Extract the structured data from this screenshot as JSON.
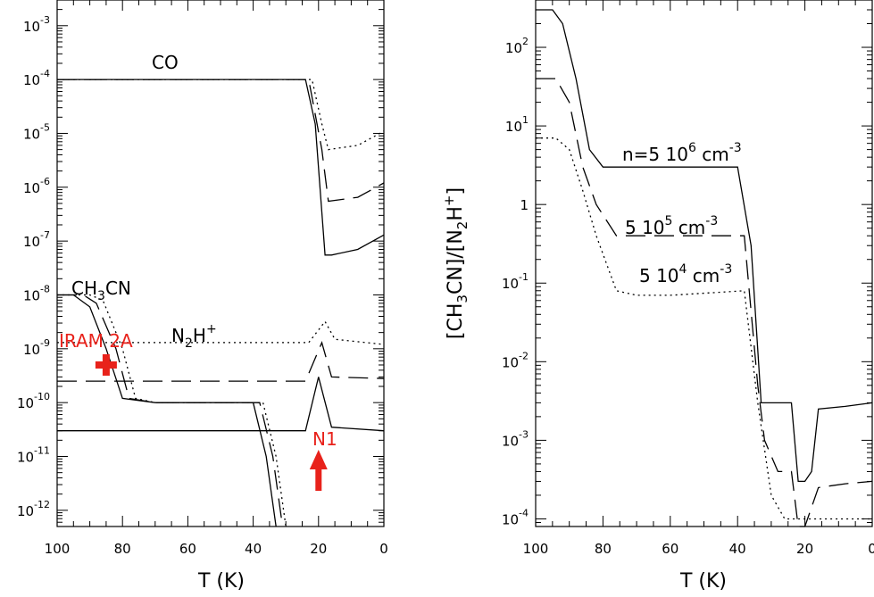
{
  "chart_data": [
    {
      "type": "line",
      "xlabel": "T (K)",
      "ylabel": "",
      "x_ticks": [
        "100",
        "80",
        "60",
        "40",
        "20",
        "0"
      ],
      "xlim": [
        100,
        0
      ],
      "ylim": [
        5e-13,
        0.003
      ],
      "yscale": "log",
      "y_ticks": [
        "10-3",
        "10-4",
        "10-5",
        "10-6",
        "10-7",
        "10-8",
        "10-9",
        "10-10",
        "10-11",
        "10-12"
      ],
      "series_labels": [
        "CO",
        "CH3CN",
        "N2H+"
      ],
      "annotations": [
        "IRAM 2A",
        "N1"
      ],
      "curves": [
        {
          "species": "CO",
          "style": "solid",
          "x": [
            100,
            24,
            21,
            18,
            16,
            8,
            0
          ],
          "y": [
            0.0001,
            0.0001,
            1.5e-05,
            5.5e-08,
            5.5e-08,
            7e-08,
            1.3e-07
          ]
        },
        {
          "species": "CO",
          "style": "dashed",
          "x": [
            100,
            23,
            19,
            17,
            8,
            0
          ],
          "y": [
            0.0001,
            0.0001,
            5e-06,
            5.5e-07,
            6.5e-07,
            1.2e-06
          ]
        },
        {
          "species": "CO",
          "style": "dotted",
          "x": [
            100,
            22,
            19,
            17,
            8,
            0
          ],
          "y": [
            0.0001,
            0.0001,
            1.5e-05,
            5e-06,
            6e-06,
            1.1e-05
          ]
        },
        {
          "species": "CH3CN",
          "style": "solid",
          "x": [
            100,
            95,
            90,
            85,
            80,
            70,
            40,
            36,
            33
          ],
          "y": [
            1e-08,
            1e-08,
            6e-09,
            1e-09,
            1.2e-10,
            1e-10,
            1e-10,
            1e-11,
            5e-13
          ]
        },
        {
          "species": "CH3CN",
          "style": "dashed",
          "x": [
            100,
            92,
            88,
            82,
            78,
            70,
            38,
            34,
            31
          ],
          "y": [
            1e-08,
            1e-08,
            7e-09,
            1e-09,
            1.2e-10,
            1e-10,
            1e-10,
            1e-11,
            5e-13
          ]
        },
        {
          "species": "CH3CN",
          "style": "dotted",
          "x": [
            100,
            90,
            86,
            80,
            76,
            70,
            37,
            33,
            30
          ],
          "y": [
            1e-08,
            1e-08,
            8e-09,
            1e-09,
            1.2e-10,
            1e-10,
            1e-10,
            1e-11,
            5e-13
          ]
        },
        {
          "species": "N2H+",
          "style": "solid",
          "x": [
            100,
            24,
            20,
            16,
            0
          ],
          "y": [
            3e-11,
            3e-11,
            3e-10,
            3.5e-11,
            3e-11
          ]
        },
        {
          "species": "N2H+",
          "style": "dashed",
          "x": [
            100,
            24,
            19,
            16,
            0
          ],
          "y": [
            2.5e-10,
            2.5e-10,
            1.3e-09,
            3e-10,
            2.8e-10
          ]
        },
        {
          "species": "N2H+",
          "style": "dotted",
          "x": [
            100,
            23,
            18,
            15,
            0
          ],
          "y": [
            1.3e-09,
            1.3e-09,
            3.2e-09,
            1.5e-09,
            1.2e-09
          ]
        }
      ],
      "markers": [
        {
          "label": "IRAM 2A",
          "shape": "cross",
          "x": 85,
          "y": 5e-10
        },
        {
          "label": "N1",
          "shape": "up-arrow",
          "x": 20,
          "y": 3e-12
        }
      ]
    },
    {
      "type": "line",
      "xlabel": "T (K)",
      "ylabel_parts": [
        "[CH",
        "3",
        "CN]/[N",
        "2",
        "H",
        "+",
        "]"
      ],
      "x_ticks": [
        "100",
        "80",
        "60",
        "40",
        "20",
        "0"
      ],
      "xlim": [
        100,
        0
      ],
      "ylim": [
        8e-05,
        400
      ],
      "yscale": "log",
      "y_ticks": [
        "102",
        "101",
        "1",
        "10-1",
        "10-2",
        "10-3",
        "10-4"
      ],
      "series": [
        {
          "name": "n=5 10^6 cm^-3",
          "style": "solid",
          "x": [
            100,
            95,
            92,
            88,
            84,
            80,
            60,
            40,
            36,
            33,
            28,
            24,
            22,
            20,
            18,
            16,
            8,
            0
          ],
          "y": [
            300,
            300,
            200,
            40,
            5,
            3,
            3,
            3,
            0.3,
            0.003,
            0.003,
            0.003,
            0.0003,
            0.0003,
            0.0004,
            0.0025,
            0.0027,
            0.003
          ]
        },
        {
          "name": "5 10^5 cm^-3",
          "style": "dashed",
          "x": [
            100,
            94,
            90,
            86,
            82,
            76,
            60,
            38,
            34,
            32,
            28,
            24,
            22,
            20,
            16,
            8,
            0
          ],
          "y": [
            40,
            40,
            20,
            3,
            1,
            0.4,
            0.4,
            0.4,
            0.005,
            0.001,
            0.0004,
            0.0004,
            8e-05,
            8e-05,
            0.00025,
            0.00028,
            0.0003
          ]
        },
        {
          "name": "5 10^4 cm^-3",
          "style": "dotted",
          "x": [
            100,
            94,
            90,
            86,
            82,
            76,
            70,
            60,
            38,
            34,
            30,
            26,
            22,
            18,
            0
          ],
          "y": [
            7,
            7,
            5,
            1.5,
            0.4,
            0.08,
            0.07,
            0.07,
            0.08,
            0.003,
            0.0002,
            0.0001,
            0.0001,
            0.0001,
            0.0001
          ]
        }
      ],
      "series_labels": [
        {
          "prefix": "n=5 10",
          "exp": "6",
          "unit": "cm",
          "uexp": "-3"
        },
        {
          "prefix": "5 10",
          "exp": "5",
          "unit": "cm",
          "uexp": "-3"
        },
        {
          "prefix": "5 10",
          "exp": "4",
          "unit": "cm",
          "uexp": "-3"
        }
      ]
    }
  ],
  "colors": {
    "axes": "#000000",
    "marker": "#e8221b"
  }
}
